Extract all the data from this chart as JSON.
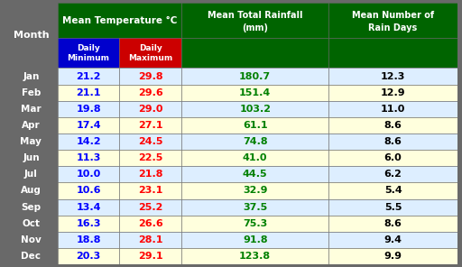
{
  "months": [
    "Jan",
    "Feb",
    "Mar",
    "Apr",
    "May",
    "Jun",
    "Jul",
    "Aug",
    "Sep",
    "Oct",
    "Nov",
    "Dec"
  ],
  "daily_min": [
    21.2,
    21.1,
    19.8,
    17.4,
    14.2,
    11.3,
    10.0,
    10.6,
    13.4,
    16.3,
    18.8,
    20.3
  ],
  "daily_max": [
    29.8,
    29.6,
    29.0,
    27.1,
    24.5,
    22.5,
    21.8,
    23.1,
    25.2,
    26.6,
    28.1,
    29.1
  ],
  "rainfall": [
    180.7,
    151.4,
    103.2,
    61.1,
    74.8,
    41.0,
    44.5,
    32.9,
    37.5,
    75.3,
    91.8,
    123.8
  ],
  "rain_days": [
    12.3,
    12.9,
    11.0,
    8.6,
    8.6,
    6.0,
    6.2,
    5.4,
    5.5,
    8.6,
    9.4,
    9.9
  ],
  "header_bg": "#006400",
  "subheader_min_bg": "#0000CD",
  "subheader_max_bg": "#CC0000",
  "month_col_bg": "#696969",
  "row_bg_odd": "#DDEEFF",
  "row_bg_even": "#FFFFDD",
  "month_text_color": "#FFFFFF",
  "min_text_color": "#0000FF",
  "max_text_color": "#FF0000",
  "rainfall_text_color": "#008000",
  "rain_days_text_color": "#000000",
  "header_text_color": "#FFFFFF",
  "temp_superscript_color": "#FFD700",
  "outer_border_color": "#696969",
  "table_border_color": "#696969"
}
